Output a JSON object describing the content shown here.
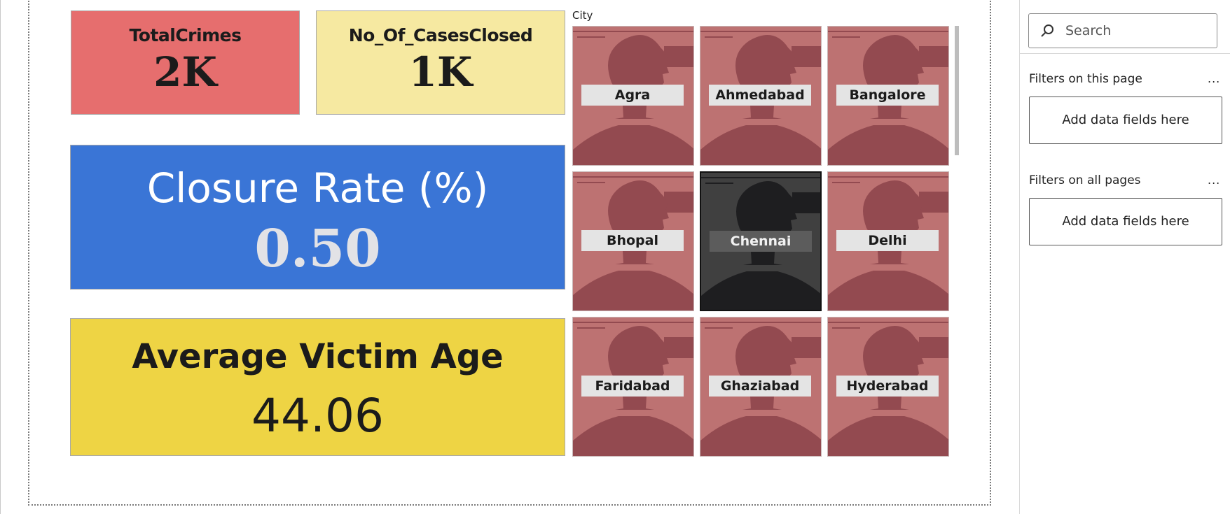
{
  "kpis": {
    "total_crimes": {
      "title": "TotalCrimes",
      "value": "2K"
    },
    "cases_closed": {
      "title": "No_Of_CasesClosed",
      "value": "1K"
    },
    "closure_rate": {
      "title": "Closure Rate (%)",
      "value": "0.50"
    },
    "avg_victim_age": {
      "title": "Average Victim Age",
      "value": "44.06"
    }
  },
  "slicer": {
    "label": "City",
    "selected": "Chennai",
    "tiles": [
      "Agra",
      "Ahmedabad",
      "Bangalore",
      "Bhopal",
      "Chennai",
      "Delhi",
      "Faridabad",
      "Ghaziabad",
      "Hyderabad"
    ],
    "tile_color": "#bd7272",
    "selected_color": "#404040"
  },
  "filter_pane": {
    "search_placeholder": "Search",
    "section_page": "Filters on this page",
    "section_all": "Filters on all pages",
    "more": "...",
    "drop_page": "Add data fields here",
    "drop_all": "Add data fields here"
  }
}
